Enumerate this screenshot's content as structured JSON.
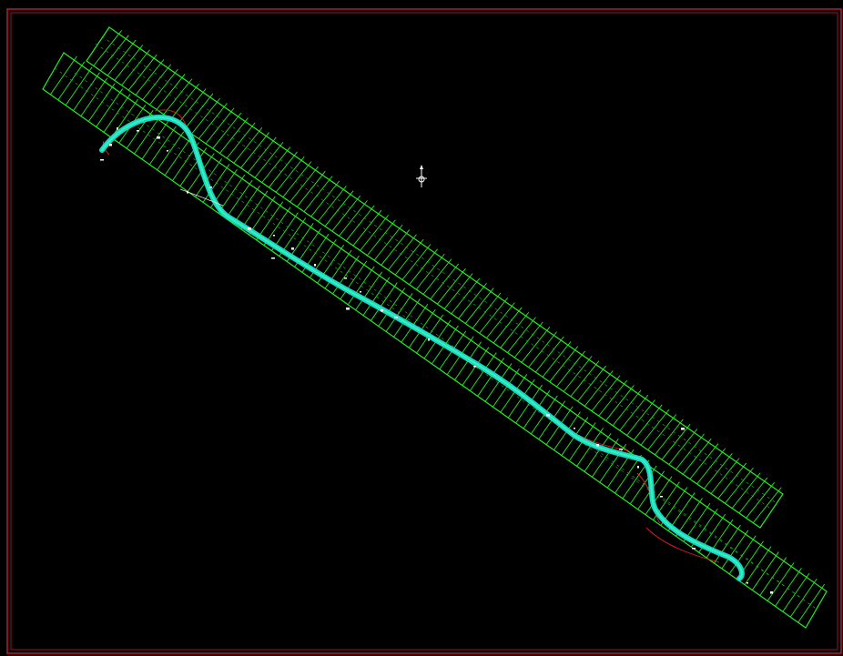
{
  "drawing": {
    "background": "#000000",
    "frame_color": "#c8104a",
    "grid_color": "#22ee22",
    "grid_detail_color": "#1fb81f",
    "centerline_color": "#1ad6c8",
    "centerline_highlight": "#36f2b4",
    "annotation_color": "#ffffff",
    "redline_color": "#e02020",
    "frame_count": 2,
    "strips": [
      {
        "name": "upper",
        "rung_count": 96
      },
      {
        "name": "lower",
        "rung_count": 100
      }
    ],
    "icons": {
      "compass": "north-arrow-icon"
    }
  }
}
